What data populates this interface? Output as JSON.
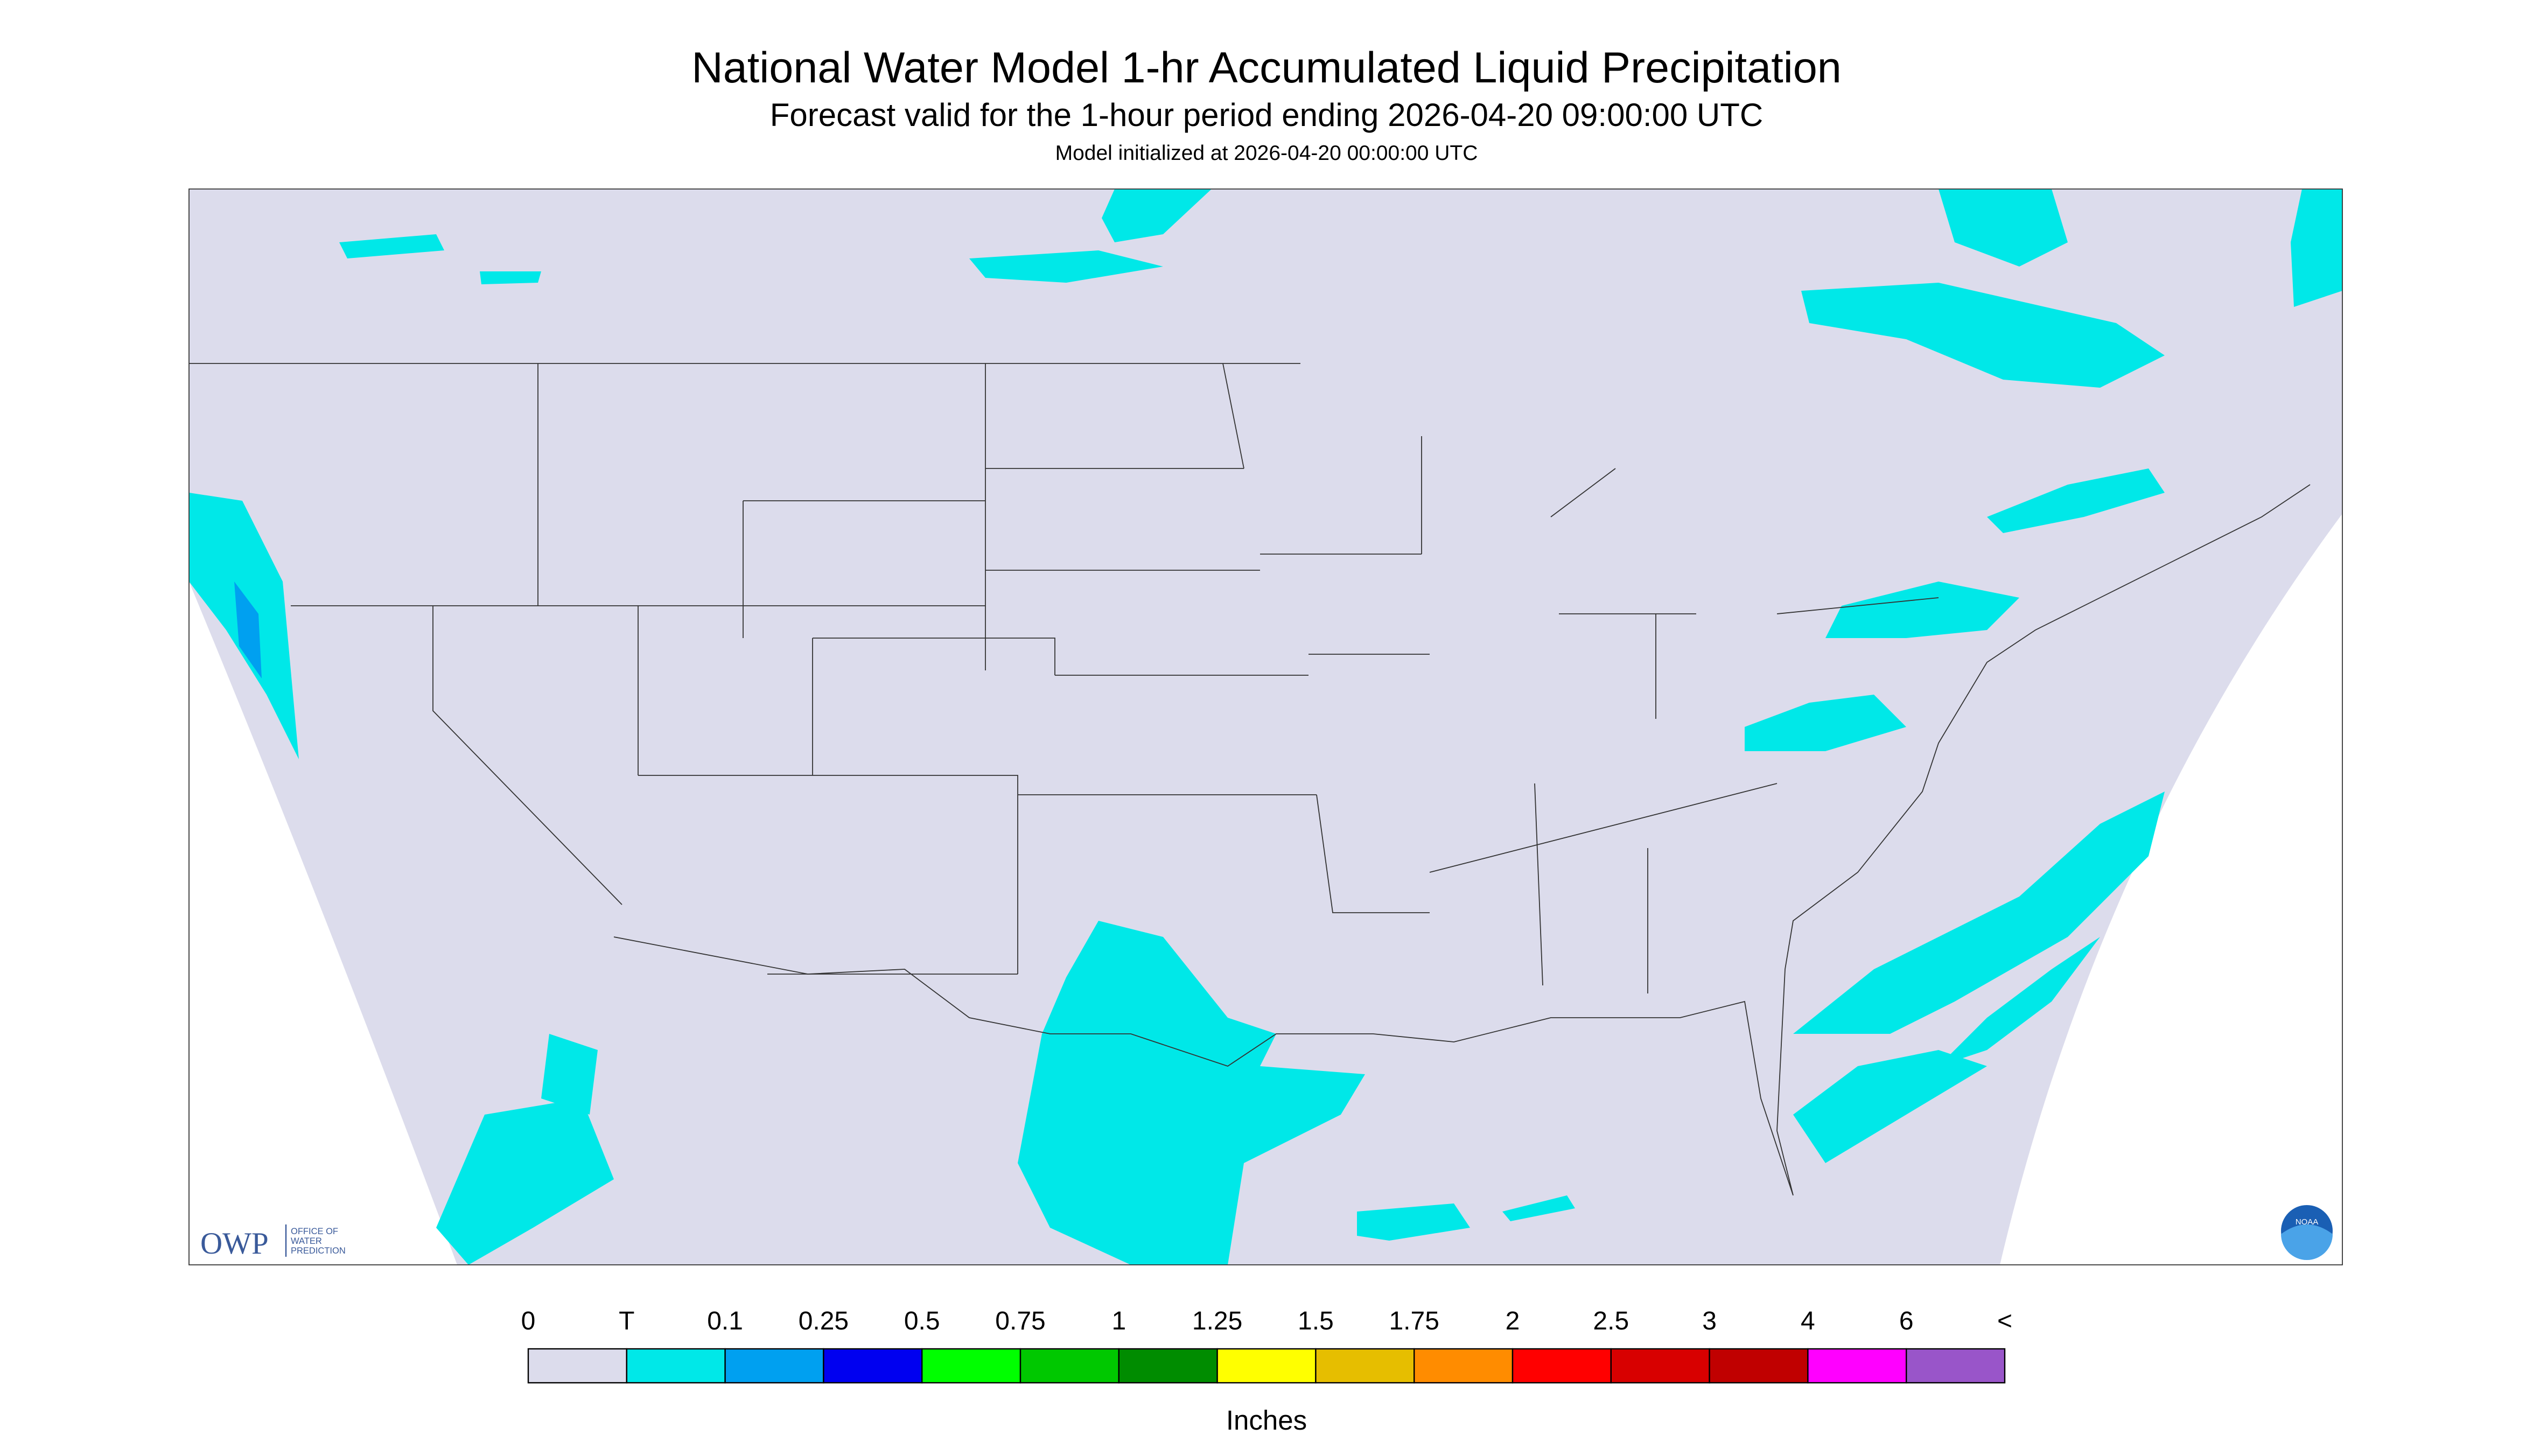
{
  "header": {
    "title": "National Water Model 1-hr Accumulated Liquid Precipitation",
    "subtitle": "Forecast valid for the 1-hour period ending 2026-04-20 09:00:00 UTC",
    "init": "Model initialized at 2026-04-20 00:00:00 UTC"
  },
  "legend": {
    "labels": [
      "0",
      "T",
      "0.1",
      "0.25",
      "0.5",
      "0.75",
      "1",
      "1.25",
      "1.5",
      "1.75",
      "2",
      "2.5",
      "3",
      "4",
      "6",
      "<"
    ],
    "colors": [
      "#dcdcec",
      "#00e8e8",
      "#00a0f0",
      "#0000f0",
      "#00ff00",
      "#00c800",
      "#008c00",
      "#ffff00",
      "#e6be00",
      "#ff8c00",
      "#ff0000",
      "#d80000",
      "#c00000",
      "#ff00ff",
      "#9955c9"
    ],
    "units": "Inches"
  },
  "logos": {
    "owp": "OWP",
    "owp_text": [
      "OFFICE OF",
      "WATER",
      "PREDICTION"
    ],
    "noaa": "NOAA"
  }
}
